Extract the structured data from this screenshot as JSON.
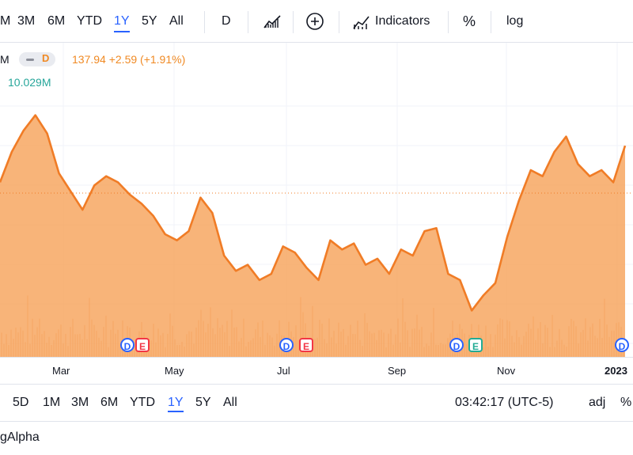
{
  "toolbar": {
    "ranges": [
      "M",
      "3M",
      "6M",
      "YTD",
      "1Y",
      "5Y",
      "All"
    ],
    "active_range": "1Y",
    "interval": "D",
    "indicators_label": "Indicators",
    "percent_label": "%",
    "log_label": "log"
  },
  "legend": {
    "symbol_fragment": "M",
    "mode_badge": "D",
    "price": "137.94",
    "change": "+2.59",
    "change_pct": "(+1.91%)",
    "volume": "10.029M"
  },
  "colors": {
    "line": "#f07c26",
    "area": "#f7a35c",
    "volume": "#f5b88a",
    "accent": "#2962ff",
    "volume_text": "#26a69a"
  },
  "events": [
    {
      "type": "D",
      "style": "dividend"
    },
    {
      "type": "E",
      "style": "earnings-red"
    },
    {
      "type": "D",
      "style": "dividend"
    },
    {
      "type": "E",
      "style": "earnings-red"
    },
    {
      "type": "D",
      "style": "dividend"
    },
    {
      "type": "E",
      "style": "earnings-green"
    },
    {
      "type": "D",
      "style": "dividend"
    }
  ],
  "chart_data": {
    "type": "area",
    "title": "",
    "xlabel": "",
    "ylabel": "",
    "x_ticks": [
      "Mar",
      "May",
      "Jul",
      "Sep",
      "Nov",
      "2023"
    ],
    "last_value_relative": 1.0,
    "series": [
      {
        "values": [
          125,
          135,
          142,
          147,
          141,
          128,
          122,
          116,
          124,
          127,
          125,
          121,
          118,
          114,
          108,
          106,
          109,
          120,
          115,
          101,
          96,
          98,
          93,
          95,
          104,
          102,
          97,
          93,
          106,
          103,
          105,
          98,
          100,
          95,
          103,
          101,
          109,
          110,
          95,
          93,
          83,
          88,
          92,
          107,
          119,
          129,
          127,
          135,
          140,
          131,
          127,
          129,
          125,
          137
        ]
      }
    ],
    "grid": true
  },
  "bottombar": {
    "ranges": [
      "5D",
      "1M",
      "3M",
      "6M",
      "YTD",
      "1Y",
      "5Y",
      "All"
    ],
    "active_range": "1Y",
    "time": "03:42:17 (UTC-5)",
    "adj_label": "adj",
    "percent_label": "%"
  },
  "source": "gAlpha"
}
